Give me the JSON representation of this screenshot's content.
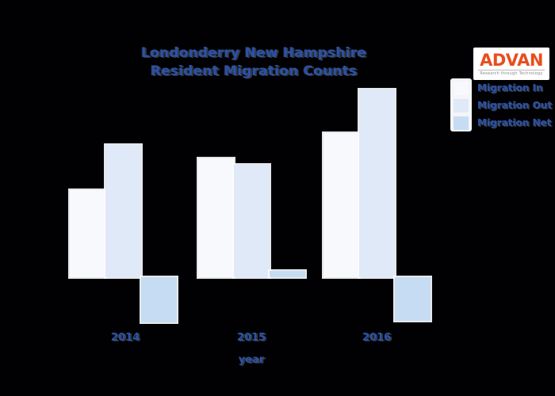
{
  "background_color": "#010103",
  "accent_text_color": "#2b52a8",
  "title": {
    "line1": "Londonderry New Hampshire",
    "line2": "Resident Migration Counts"
  },
  "logo": {
    "name": "ADVAN",
    "tagline": "Research through Technology",
    "name_color": "#e84e1e"
  },
  "legend": {
    "items": [
      {
        "label": "Migration In",
        "color": "#f7f9fd"
      },
      {
        "label": "Migration Out",
        "color": "#dfe9f8"
      },
      {
        "label": "Migration Net",
        "color": "#c6dcf2"
      }
    ]
  },
  "x_axis": {
    "label": "year",
    "ticks": [
      "2014",
      "2015",
      "2016"
    ]
  },
  "chart_data": {
    "type": "bar",
    "title": "Londonderry New Hampshire Resident Migration Counts",
    "categories": [
      "2014",
      "2015",
      "2016"
    ],
    "series": [
      {
        "name": "Migration In",
        "color": "#f7f9fd",
        "values": [
          1100,
          1500,
          1820
        ]
      },
      {
        "name": "Migration Out",
        "color": "#dfe9f8",
        "values": [
          1670,
          1420,
          2370
        ]
      },
      {
        "name": "Migration Net",
        "color": "#c6dcf2",
        "values": [
          -570,
          80,
          -550
        ]
      }
    ],
    "xlabel": "year",
    "ylabel": "",
    "ylim": [
      -600,
      2400
    ],
    "y_axis_visible": false,
    "grid": false,
    "legend_position": "upper right",
    "background": "black"
  }
}
